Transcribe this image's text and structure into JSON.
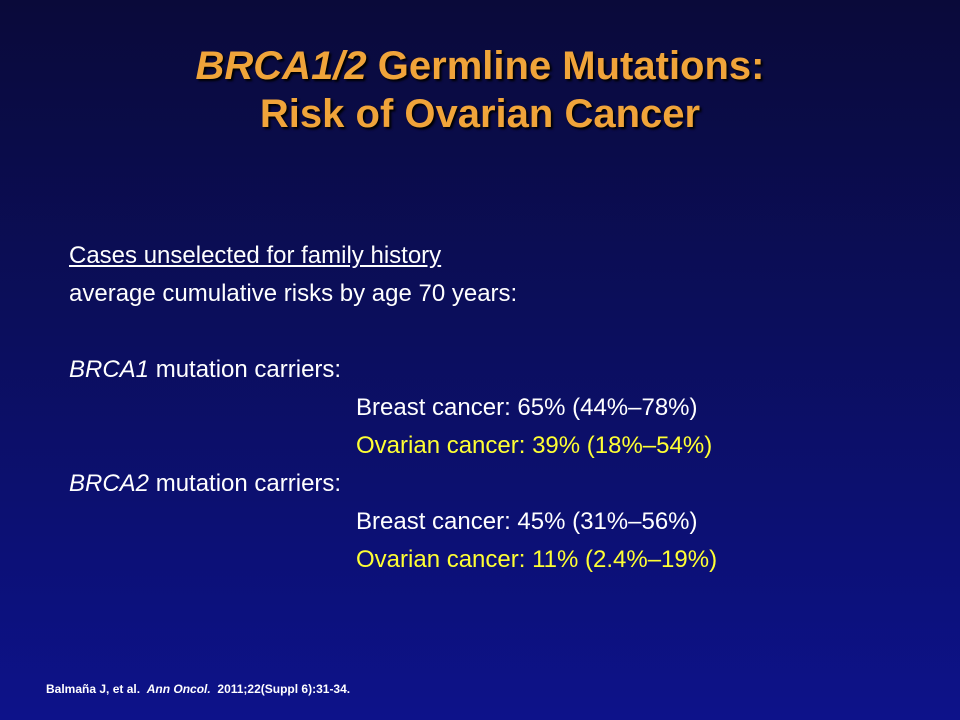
{
  "title": {
    "gene": "BRCA1/2",
    "rest_line1": " Germline Mutations:",
    "line2": "Risk of Ovarian Cancer"
  },
  "body": {
    "heading": "Cases unselected for family history",
    "subheading": "average cumulative risks by age 70 years:",
    "groups": [
      {
        "gene": "BRCA1",
        "label": " mutation carriers:",
        "breast": "Breast cancer: 65% (44%–78%)",
        "ovarian": "Ovarian cancer: 39% (18%–54%)"
      },
      {
        "gene": "BRCA2",
        "label": " mutation carriers:",
        "breast": "Breast cancer: 45% (31%–56%)",
        "ovarian": "Ovarian cancer: 11% (2.4%–19%)"
      }
    ]
  },
  "citation": {
    "authors": "Balmaña J, et al.",
    "journal": "Ann Oncol.",
    "details": "2011;22(Suppl 6):31-34."
  },
  "colors": {
    "title": "#f0a43a",
    "text": "#ffffff",
    "highlight": "#ffff33"
  }
}
